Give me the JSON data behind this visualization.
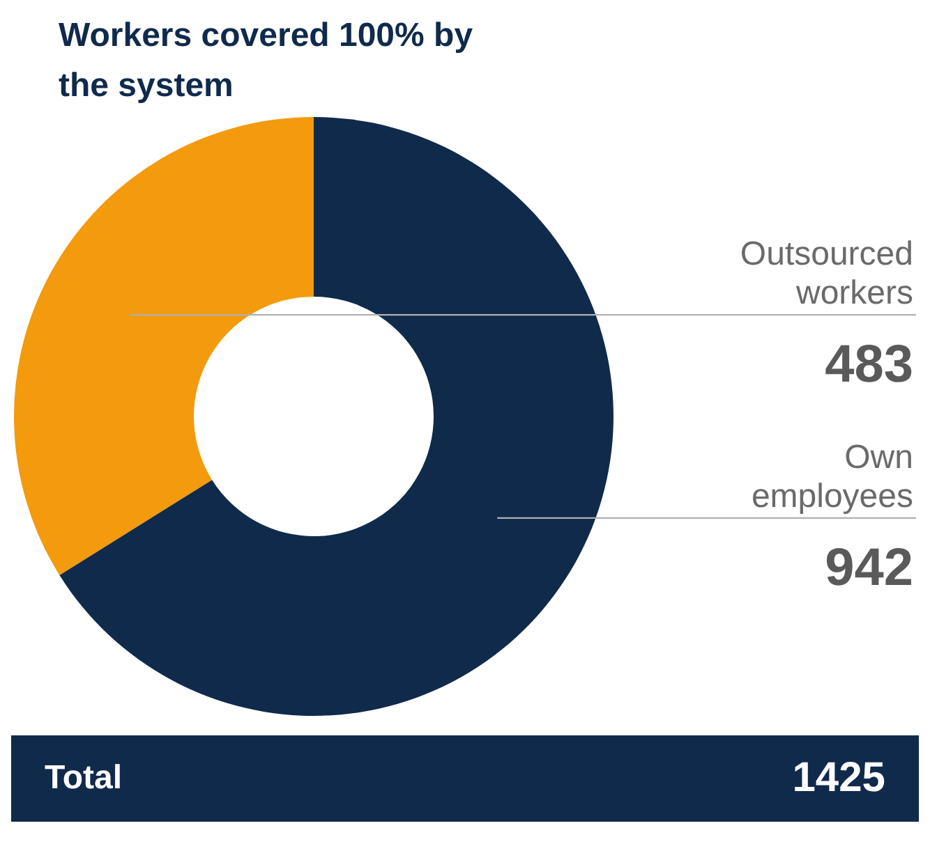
{
  "chart_data": {
    "type": "donut",
    "title": "Workers covered 100% by the system",
    "categories": [
      "Outsourced workers",
      "Own employees"
    ],
    "values": [
      483,
      942
    ],
    "colors": [
      "#f39a0d",
      "#102a4c"
    ],
    "data_labels": true,
    "legend": false,
    "annotations": [
      "Total",
      "1425"
    ]
  }
}
